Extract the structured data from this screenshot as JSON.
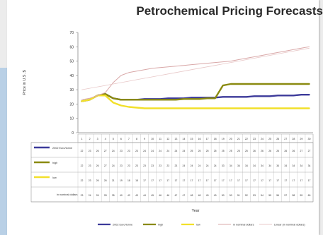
{
  "chart_data": {
    "type": "line",
    "title": "Petrochemical Pricing Forecasts",
    "xlabel": "Year",
    "ylabel": "Price in U.S. $",
    "ylim": [
      0,
      70
    ],
    "yticks": [
      "0",
      "10",
      "20",
      "30",
      "40",
      "50",
      "60",
      "70"
    ],
    "categories": [
      "1",
      "2",
      "3",
      "4",
      "5",
      "6",
      "7",
      "8",
      "9",
      "10",
      "11",
      "12",
      "13",
      "14",
      "15",
      "16",
      "17",
      "18",
      "19",
      "20",
      "21",
      "22",
      "23",
      "24",
      "25",
      "26",
      "27",
      "28",
      "29",
      "30"
    ],
    "series": [
      {
        "name": "2002 Euro/tonne",
        "color": "#3c3a9a",
        "values": [
          22,
          23,
          26,
          27,
          24,
          23,
          23,
          23,
          23.5,
          23.5,
          23.5,
          24,
          24,
          24,
          24.5,
          24.5,
          24.5,
          24.5,
          25,
          25,
          25,
          25,
          25.5,
          25.5,
          25.5,
          26,
          26,
          26,
          26.5,
          26.5
        ]
      },
      {
        "name": "high",
        "color": "#8a8a10",
        "values": [
          22,
          23,
          26,
          27,
          24,
          23,
          23,
          23,
          23,
          23,
          23,
          23,
          23,
          23.5,
          23.5,
          23.5,
          24,
          24,
          33,
          34,
          34,
          34,
          34,
          34,
          34,
          34,
          34,
          34,
          34,
          34
        ]
      },
      {
        "name": "low",
        "color": "#f2e02a",
        "values": [
          22,
          23,
          26,
          26,
          21,
          19,
          18,
          17.5,
          17,
          17,
          17,
          17,
          17,
          17,
          17,
          17,
          17,
          17,
          17,
          17,
          17,
          17,
          17,
          17,
          17,
          17,
          17,
          17,
          17,
          17
        ]
      },
      {
        "name": "in nominal dollars",
        "color": "#d9a8a8",
        "values": [
          23,
          24,
          26,
          28,
          35,
          40,
          42,
          43,
          44,
          45,
          45.5,
          46,
          46.5,
          47,
          47.5,
          48,
          48.5,
          49,
          49.5,
          50,
          51,
          52,
          53,
          54,
          55,
          56,
          57,
          58,
          59,
          60
        ]
      },
      {
        "name": "",
        "color": "#e8c8c8",
        "values": [
          30,
          31,
          32,
          33,
          34,
          35,
          36,
          37,
          38,
          39,
          40,
          41,
          42,
          43,
          44,
          45,
          46,
          47,
          48,
          49,
          50,
          51,
          52,
          53,
          54,
          55,
          56,
          57,
          58,
          59
        ]
      }
    ],
    "table_rows": [
      {
        "name": "2002 Euro/tonne",
        "color": "#3c3a9a"
      },
      {
        "name": "high",
        "color": "#8a8a10"
      },
      {
        "name": "low",
        "color": "#f2e02a"
      },
      {
        "name": "in nominal dollars",
        "color": "#d9a8a8"
      }
    ],
    "legend": [
      {
        "name": "2002 Euro/tonne",
        "color": "#3c3a9a"
      },
      {
        "name": "high",
        "color": "#8a8a10"
      },
      {
        "name": "low",
        "color": "#f2e02a"
      },
      {
        "name": "in nominal dollars",
        "color": "#d9a8a8"
      },
      {
        "name": "Linear (in nominal dollars)",
        "color": "#e8c8c8"
      }
    ],
    "legend_placement": "bottom",
    "grid": false
  }
}
